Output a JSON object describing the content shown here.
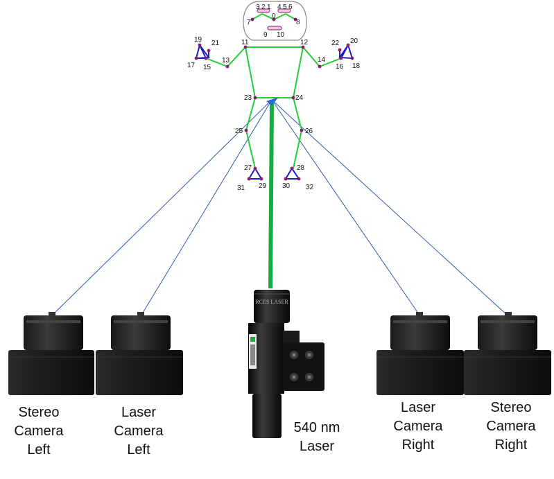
{
  "keypoints": [
    "0",
    "1",
    "2",
    "3",
    "4",
    "5",
    "6",
    "7",
    "8",
    "9",
    "10",
    "11",
    "12",
    "13",
    "14",
    "15",
    "16",
    "17",
    "18",
    "19",
    "20",
    "21",
    "22",
    "23",
    "24",
    "25",
    "26",
    "27",
    "28",
    "29",
    "30",
    "31",
    "32"
  ],
  "labels": {
    "stereo_left": [
      "Stereo",
      "Camera",
      "Left"
    ],
    "laser_left": [
      "Laser",
      "Camera",
      "Left"
    ],
    "laser": [
      "540 nm",
      "Laser"
    ],
    "laser_right": [
      "Laser",
      "Camera",
      "Right"
    ],
    "stereo_right": [
      "Stereo",
      "Camera",
      "Right"
    ]
  },
  "device_text": {
    "laser_housing": "RCES LASER"
  },
  "colors": {
    "skeleton": "#22cc33",
    "limb_triangle": "#1a1acc",
    "keypoint": "#8a1a6a",
    "camera_ray": "#2a5aaa",
    "laser_beam": "#1aaa44",
    "body_device": "#1a1a1a"
  }
}
